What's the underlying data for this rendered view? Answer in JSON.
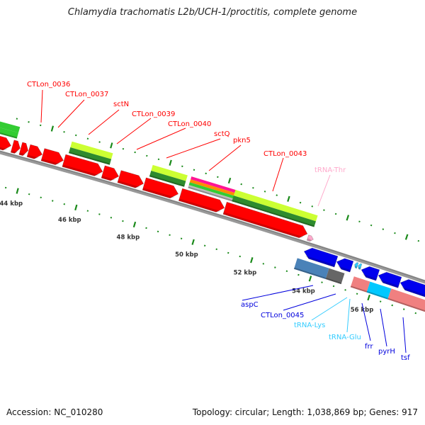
{
  "title": "Chlamydia trachomatis L2b/UCH-1/proctitis, complete genome",
  "footer": {
    "accession": "Accession: NC_010280",
    "topology": "Topology: circular; Length: 1,038,869 bp; Genes: 917"
  },
  "colors": {
    "backbone": "#808080",
    "tick": "#1a8a1a",
    "forward_cds": "#ff0000",
    "reverse_cds": "#0000ee",
    "trna_fwd": "#ffaacc",
    "trna_rev": "#33ccff",
    "label_fwd": "#ff0000",
    "label_rev": "#0000dd"
  },
  "ruler": {
    "unit": "kbp",
    "labels": [
      "44 kbp",
      "46 kbp",
      "48 kbp",
      "50 kbp",
      "52 kbp",
      "54 kbp",
      "56 kbp"
    ],
    "major_kbp": [
      44,
      46,
      48,
      50,
      52,
      54,
      56
    ]
  },
  "features": [
    {
      "type": "CDS",
      "strand": "+",
      "start_kbp": 42.6,
      "end_kbp": 43.4,
      "color": "#ff0000"
    },
    {
      "type": "CDS",
      "strand": "+",
      "start_kbp": 43.45,
      "end_kbp": 43.71,
      "color": "#ff0000"
    },
    {
      "type": "CDS",
      "strand": "+",
      "start_kbp": 43.73,
      "end_kbp": 43.98,
      "color": "#ff0000"
    },
    {
      "type": "CDS",
      "strand": "+",
      "start_kbp": 44.0,
      "end_kbp": 44.46,
      "color": "#ff0000"
    },
    {
      "type": "CDS",
      "strand": "+",
      "start_kbp": 44.48,
      "end_kbp": 45.18,
      "color": "#ff0000"
    },
    {
      "type": "CDS",
      "strand": "+",
      "start_kbp": 45.2,
      "end_kbp": 46.51,
      "color": "#ff0000"
    },
    {
      "type": "CDS",
      "strand": "+",
      "start_kbp": 46.53,
      "end_kbp": 47.06,
      "color": "#ff0000"
    },
    {
      "type": "CDS",
      "strand": "+",
      "start_kbp": 47.08,
      "end_kbp": 47.9,
      "color": "#ff0000"
    },
    {
      "type": "CDS",
      "strand": "+",
      "start_kbp": 47.93,
      "end_kbp": 49.08,
      "color": "#ff0000"
    },
    {
      "type": "CDS",
      "strand": "+",
      "start_kbp": 49.16,
      "end_kbp": 50.65,
      "color": "#ff0000"
    },
    {
      "type": "CDS",
      "strand": "+",
      "start_kbp": 50.67,
      "end_kbp": 53.47,
      "color": "#ff0000"
    },
    {
      "type": "tRNA",
      "strand": "+",
      "start_kbp": 53.52,
      "end_kbp": 53.71,
      "color": "#ffaacc"
    },
    {
      "type": "CDS",
      "strand": "-",
      "start_kbp": 53.54,
      "end_kbp": 54.63,
      "color": "#0000ee"
    },
    {
      "type": "CDS",
      "strand": "-",
      "start_kbp": 54.65,
      "end_kbp": 55.16,
      "color": "#0000ee"
    },
    {
      "type": "tRNA",
      "strand": "-",
      "start_kbp": 55.23,
      "end_kbp": 55.33,
      "color": "#33ccff"
    },
    {
      "type": "tRNA",
      "strand": "-",
      "start_kbp": 55.35,
      "end_kbp": 55.45,
      "color": "#33ccff"
    },
    {
      "type": "CDS",
      "strand": "-",
      "start_kbp": 55.49,
      "end_kbp": 56.05,
      "color": "#0000ee"
    },
    {
      "type": "CDS",
      "strand": "-",
      "start_kbp": 56.07,
      "end_kbp": 56.8,
      "color": "#0000ee"
    },
    {
      "type": "CDS",
      "strand": "-",
      "start_kbp": 56.82,
      "end_kbp": 57.9,
      "color": "#0000ee"
    }
  ],
  "annotations": [
    {
      "row": "upper",
      "start_kbp": 42.6,
      "end_kbp": 43.52,
      "colors": [
        "#33cc33",
        "#33cc33"
      ]
    },
    {
      "row": "upper",
      "start_kbp": 45.28,
      "end_kbp": 46.67,
      "colors": [
        "#ccff33",
        "#2e8b2e"
      ]
    },
    {
      "row": "upper",
      "start_kbp": 48.02,
      "end_kbp": 49.2,
      "colors": [
        "#ccff33",
        "#2e8b2e"
      ]
    },
    {
      "row": "upper",
      "start_kbp": 49.33,
      "end_kbp": 50.87,
      "colors": [
        "#ff1493",
        "#ff8c00",
        "#33cc33",
        "#bbbbbb"
      ]
    },
    {
      "row": "upper",
      "start_kbp": 50.82,
      "end_kbp": 53.61,
      "colors": [
        "#ccff33",
        "#2e8b2e"
      ]
    },
    {
      "row": "lower",
      "start_kbp": 53.4,
      "end_kbp": 54.48,
      "colors": [
        "#4a82b8"
      ]
    },
    {
      "row": "lower",
      "start_kbp": 54.48,
      "end_kbp": 55.01,
      "colors": [
        "#666666"
      ]
    },
    {
      "row": "lower",
      "start_kbp": 55.33,
      "end_kbp": 55.88,
      "colors": [
        "#f08080"
      ]
    },
    {
      "row": "lower",
      "start_kbp": 55.88,
      "end_kbp": 56.6,
      "colors": [
        "#00c8ff"
      ]
    },
    {
      "row": "lower",
      "start_kbp": 56.6,
      "end_kbp": 57.9,
      "colors": [
        "#f08080"
      ]
    }
  ],
  "labels": [
    {
      "text": "CTLon_0036",
      "color": "#ff0000"
    },
    {
      "text": "CTLon_0037",
      "color": "#ff0000"
    },
    {
      "text": "sctN",
      "color": "#ff0000"
    },
    {
      "text": "CTLon_0039",
      "color": "#ff0000"
    },
    {
      "text": "CTLon_0040",
      "color": "#ff0000"
    },
    {
      "text": "sctQ",
      "color": "#ff0000"
    },
    {
      "text": "pkn5",
      "color": "#ff0000"
    },
    {
      "text": "CTLon_0043",
      "color": "#ff0000"
    },
    {
      "text": "tRNA-Thr",
      "color": "#ffaacc"
    },
    {
      "text": "aspC",
      "color": "#0000dd"
    },
    {
      "text": "CTLon_0045",
      "color": "#0000dd"
    },
    {
      "text": "tRNA-Lys",
      "color": "#33ccff"
    },
    {
      "text": "tRNA-Glu",
      "color": "#33ccff"
    },
    {
      "text": "frr",
      "color": "#0000dd"
    },
    {
      "text": "pyrH",
      "color": "#0000dd"
    },
    {
      "text": "tsf",
      "color": "#0000dd"
    }
  ]
}
